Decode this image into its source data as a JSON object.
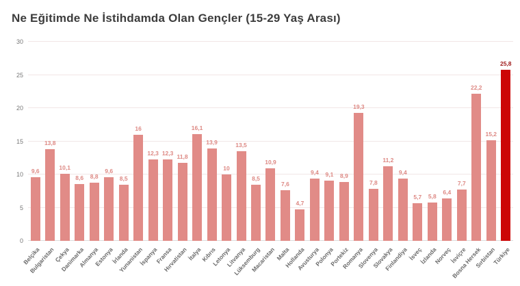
{
  "chart_data": {
    "type": "bar",
    "title": "Ne Eğitimde Ne İstihdamda Olan Gençler (15-29 Yaş Arası)",
    "xlabel": "",
    "ylabel": "",
    "ylim": [
      0,
      30
    ],
    "yticks": [
      0,
      5,
      10,
      15,
      20,
      25,
      30
    ],
    "grid": true,
    "legend": "none",
    "categories": [
      "Belçika",
      "Bulgaristan",
      "Çekya",
      "Danimarka",
      "Almanya",
      "Estonya",
      "İrlanda",
      "Yunanistan",
      "İspanya",
      "Fransa",
      "Hırvatistan",
      "İtalya",
      "Kıbrıs",
      "Letonya",
      "Litvanya",
      "Lüksemburg",
      "Macaristan",
      "Malta",
      "Hollanda",
      "Avusturya",
      "Polonya",
      "Portekiz",
      "Romanya",
      "Slovenya",
      "Slovakya",
      "Finlandiya",
      "İsveç",
      "İzlanda",
      "Norveç",
      "İsviçre",
      "Bosna Hersek",
      "Sırbistan",
      "Türkiye"
    ],
    "values": [
      9.6,
      13.8,
      10.1,
      8.6,
      8.8,
      9.6,
      8.5,
      16,
      12.3,
      12.3,
      11.8,
      16.1,
      13.9,
      10,
      13.5,
      8.5,
      10.9,
      7.6,
      4.7,
      9.4,
      9.1,
      8.9,
      19.3,
      7.8,
      11.2,
      9.4,
      5.7,
      5.8,
      6.4,
      7.7,
      22.2,
      15.2,
      25.8
    ],
    "value_labels": [
      "9,6",
      "13,8",
      "10,1",
      "8,6",
      "8,8",
      "9,6",
      "8,5",
      "16",
      "12,3",
      "12,3",
      "11,8",
      "16,1",
      "13,9",
      "10",
      "13,5",
      "8,5",
      "10,9",
      "7,6",
      "4,7",
      "9,4",
      "9,1",
      "8,9",
      "19,3",
      "7,8",
      "11,2",
      "9,4",
      "5,7",
      "5,8",
      "6,4",
      "7,7",
      "22,2",
      "15,2",
      "25,8"
    ],
    "bar_color": "#e18b87",
    "value_label_color": "#dd8883",
    "highlight_index": 32,
    "highlight_color": "#cc0606",
    "highlight_label_color": "#9e1616",
    "grid_color": "#f1e6e6",
    "title_color": "#3c3c3c",
    "tick_color": "#787878"
  }
}
